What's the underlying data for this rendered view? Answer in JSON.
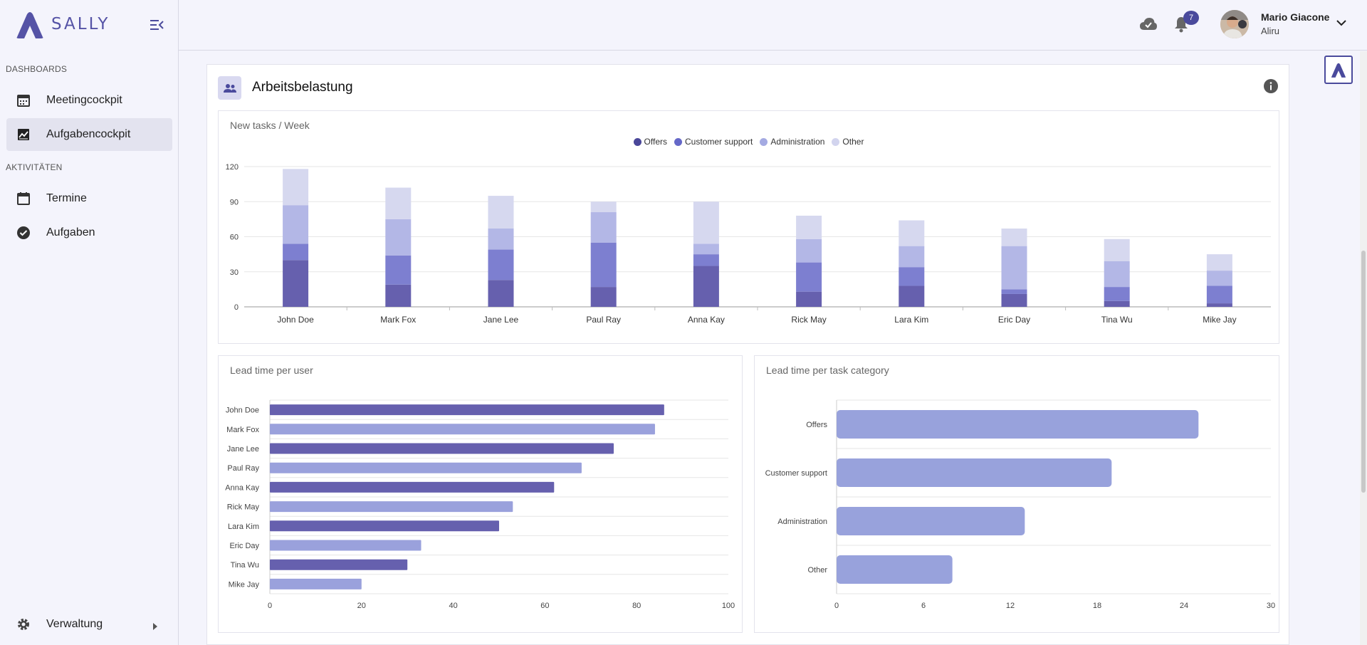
{
  "app": {
    "name": "SALLY"
  },
  "sidebar": {
    "sections": [
      {
        "label": "DASHBOARDS",
        "items": [
          {
            "label": "Meetingcockpit",
            "icon": "calendar-grid-icon",
            "active": false
          },
          {
            "label": "Aufgabencockpit",
            "icon": "chart-line-icon",
            "active": true
          }
        ]
      },
      {
        "label": "AKTIVITÄTEN",
        "items": [
          {
            "label": "Termine",
            "icon": "calendar-icon",
            "active": false
          },
          {
            "label": "Aufgaben",
            "icon": "check-circle-icon",
            "active": false
          }
        ]
      }
    ],
    "footer_item": {
      "label": "Verwaltung",
      "icon": "gear-icon"
    }
  },
  "header": {
    "notifications_count": "7",
    "user": {
      "name": "Mario Giacone",
      "org": "Aliru"
    }
  },
  "card": {
    "title": "Arbeitsbelastung"
  },
  "colors": {
    "primary": "#4a4a9c",
    "offers": "#6660ae",
    "customer_support": "#7d7fd0",
    "administration": "#b3b7e6",
    "other": "#d6d8ef",
    "bar_dark": "#6660ae",
    "bar_light": "#9aa1dc",
    "bar_category": "#98a2dc"
  },
  "chart_data": [
    {
      "id": "tasks-week",
      "type": "bar",
      "stacked": true,
      "title": "New tasks / Week",
      "legend_position": "top",
      "categories": [
        "John Doe",
        "Mark Fox",
        "Jane Lee",
        "Paul Ray",
        "Anna Kay",
        "Rick May",
        "Lara Kim",
        "Eric Day",
        "Tina Wu",
        "Mike Jay"
      ],
      "series": [
        {
          "name": "Offers",
          "values": [
            40,
            19,
            23,
            17,
            35,
            13,
            18,
            11,
            5,
            3
          ]
        },
        {
          "name": "Customer support",
          "values": [
            14,
            25,
            26,
            38,
            10,
            25,
            16,
            4,
            12,
            15
          ]
        },
        {
          "name": "Administration",
          "values": [
            33,
            31,
            18,
            26,
            9,
            20,
            18,
            37,
            22,
            13
          ]
        },
        {
          "name": "Other",
          "values": [
            31,
            27,
            28,
            9,
            36,
            20,
            22,
            15,
            19,
            14
          ]
        }
      ],
      "ylim": [
        0,
        120
      ],
      "yticks": [
        0,
        30,
        60,
        90,
        120
      ],
      "grid": true
    },
    {
      "id": "lead-user",
      "type": "bar",
      "orientation": "horizontal",
      "title": "Lead time per user",
      "categories": [
        "John Doe",
        "Mark Fox",
        "Jane Lee",
        "Paul Ray",
        "Anna Kay",
        "Rick May",
        "Lara Kim",
        "Eric Day",
        "Tina Wu",
        "Mike Jay"
      ],
      "values": [
        86,
        84,
        75,
        68,
        62,
        53,
        50,
        33,
        30,
        20
      ],
      "xlim": [
        0,
        100
      ],
      "xticks": [
        0,
        20,
        40,
        60,
        80,
        100
      ],
      "grid": true
    },
    {
      "id": "lead-category",
      "type": "bar",
      "orientation": "horizontal",
      "title": "Lead time per task category",
      "categories": [
        "Offers",
        "Customer support",
        "Administration",
        "Other"
      ],
      "values": [
        25,
        19,
        13,
        8
      ],
      "xlim": [
        0,
        30
      ],
      "xticks": [
        0,
        6,
        12,
        18,
        24,
        30
      ],
      "grid": true
    }
  ]
}
